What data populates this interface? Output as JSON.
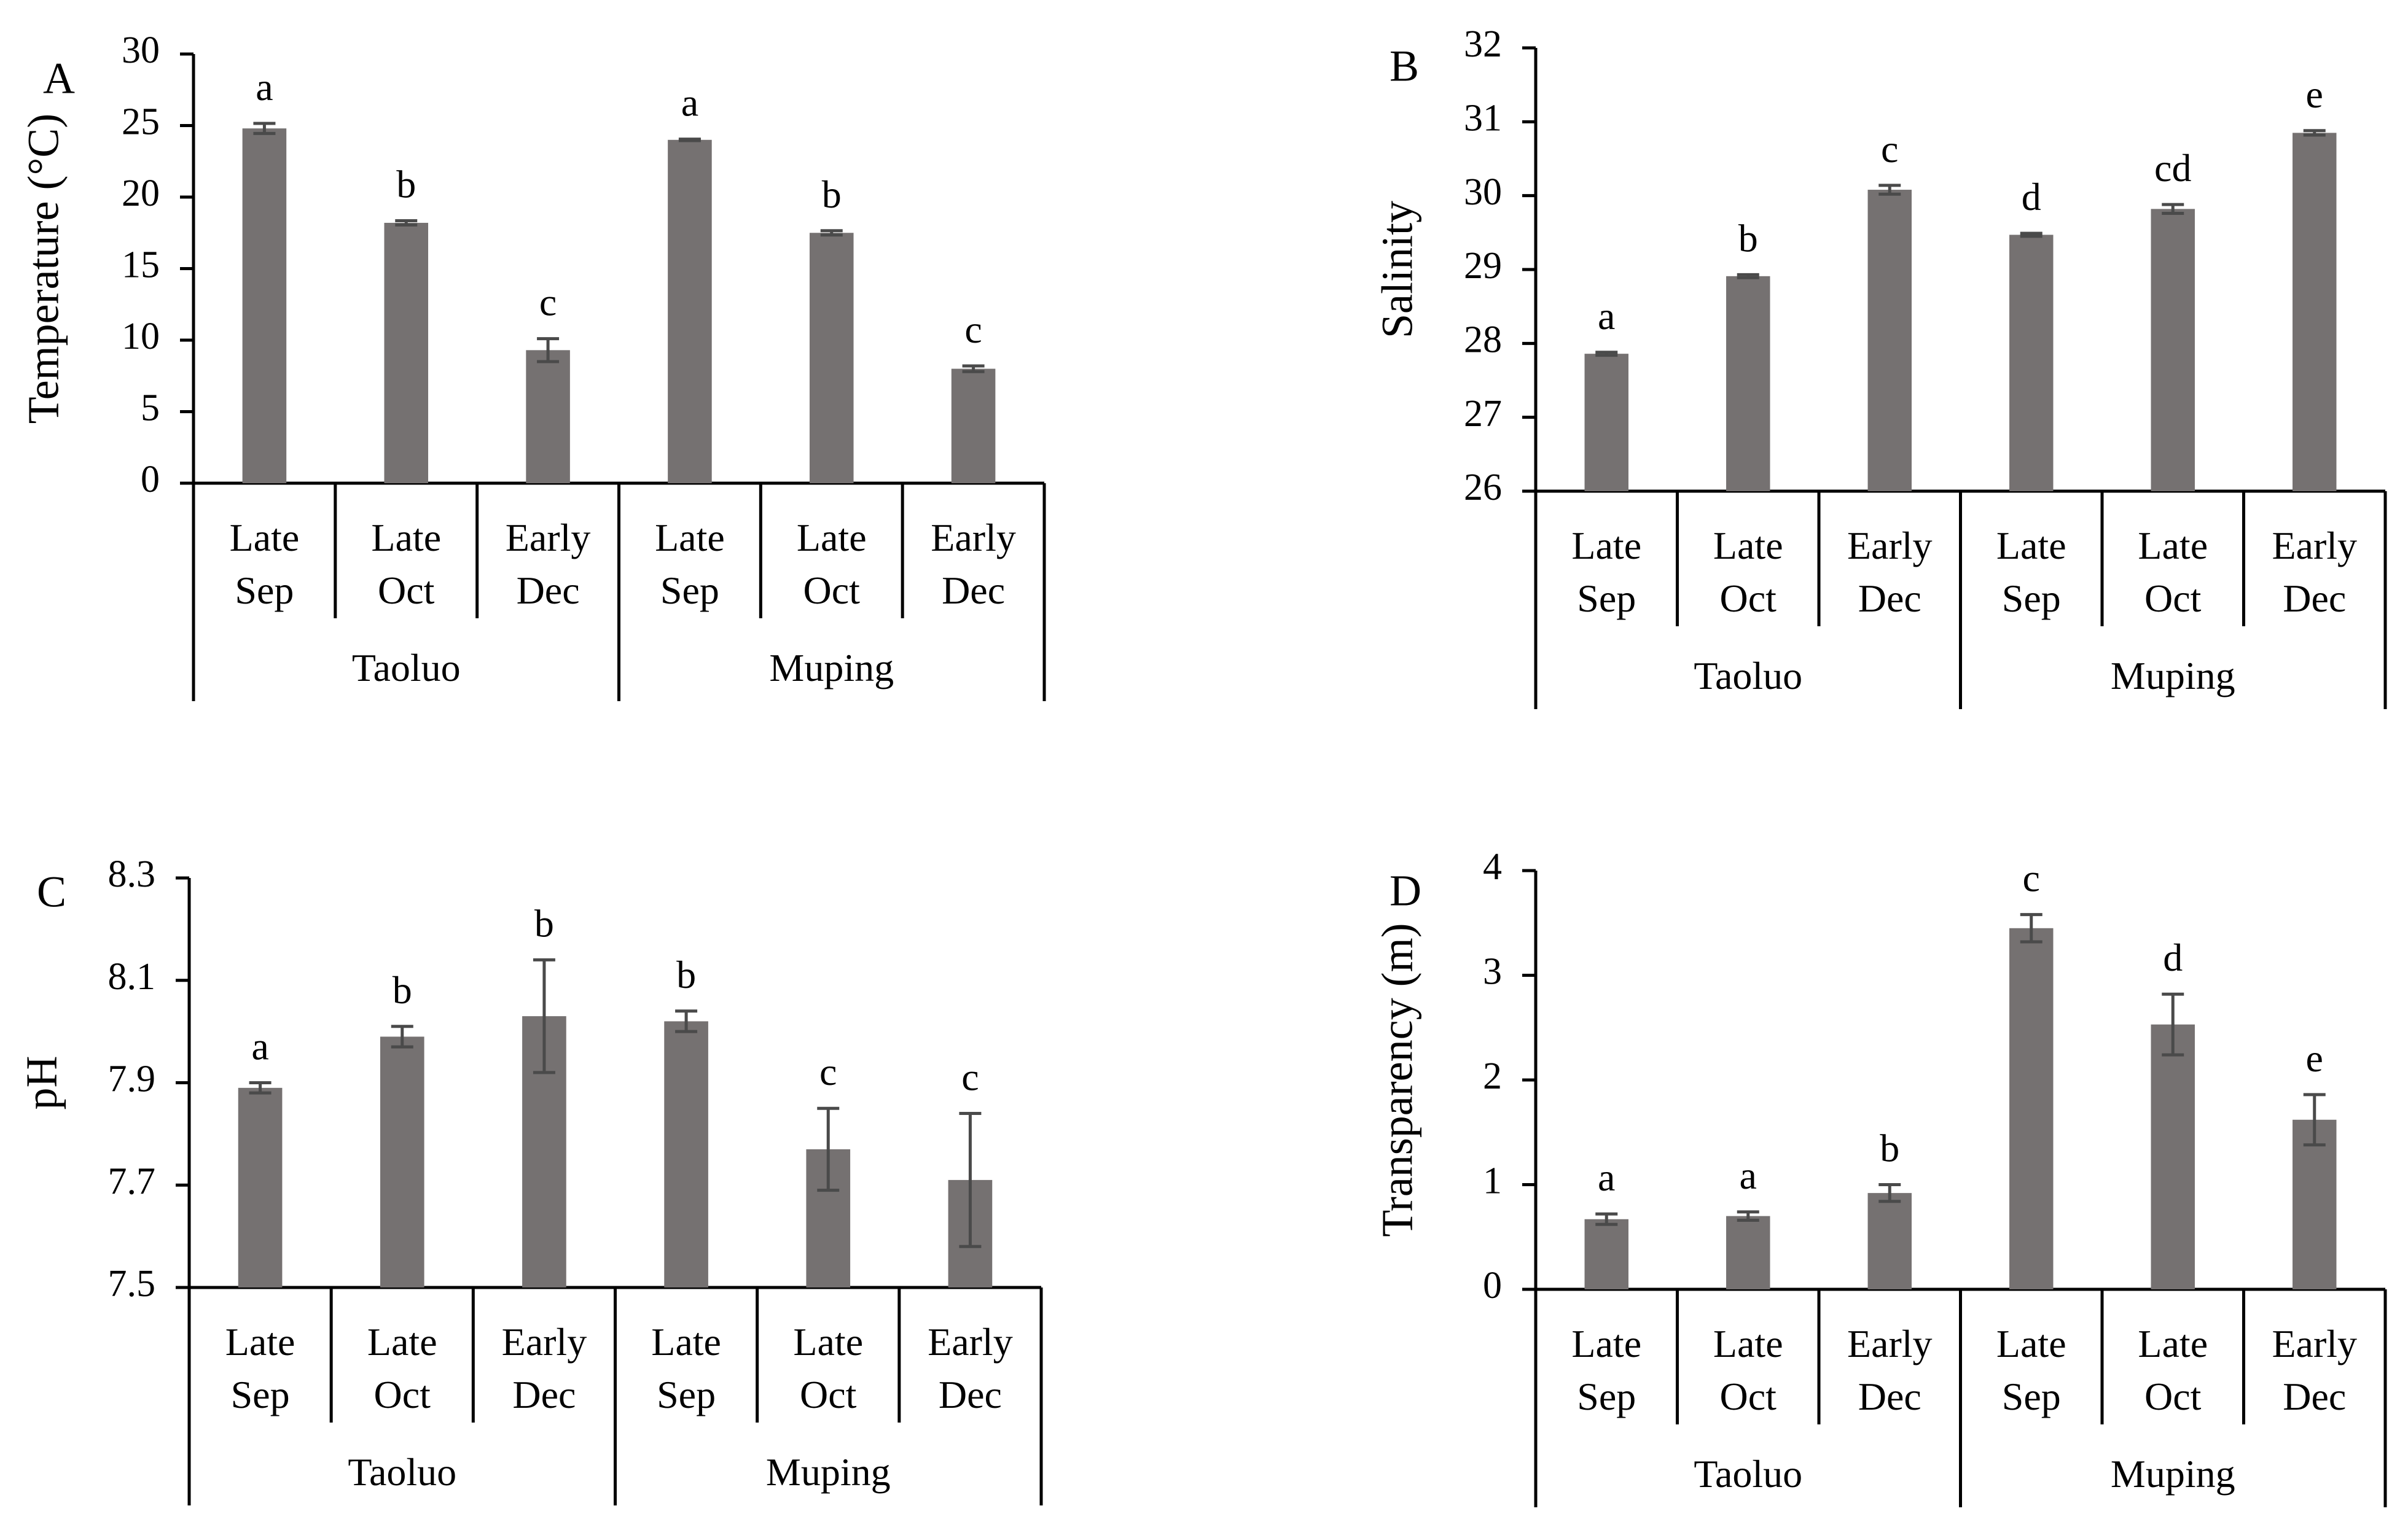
{
  "colors": {
    "bar": "#757171",
    "error_bar": "#4a4a4a",
    "axis": "#000000",
    "background": "#ffffff"
  },
  "chart_data": [
    {
      "type": "bar",
      "panel": "A",
      "ylabel": "Temperature (°C)",
      "ylim": [
        0,
        30
      ],
      "yticks": [
        0,
        5,
        10,
        15,
        20,
        25,
        30
      ],
      "ytick_labels": [
        "0",
        "5",
        "10",
        "15",
        "20",
        "25",
        "30"
      ],
      "categories": [
        [
          "Late",
          "Sep"
        ],
        [
          "Late",
          "Oct"
        ],
        [
          "Early",
          "Dec"
        ],
        [
          "Late",
          "Sep"
        ],
        [
          "Late",
          "Oct"
        ],
        [
          "Early",
          "Dec"
        ]
      ],
      "groups": [
        {
          "name": "Taoluo",
          "span": [
            0,
            3
          ]
        },
        {
          "name": "Muping",
          "span": [
            3,
            6
          ]
        }
      ],
      "values": [
        24.8,
        18.2,
        9.3,
        24.0,
        17.5,
        8.0
      ],
      "errors": [
        0.35,
        0.15,
        0.8,
        0.05,
        0.15,
        0.2
      ],
      "significance": [
        "a",
        "b",
        "c",
        "a",
        "b",
        "c"
      ],
      "grid": false,
      "legend": "none"
    },
    {
      "type": "bar",
      "panel": "B",
      "ylabel": "Salinity",
      "ylim": [
        26,
        32
      ],
      "yticks": [
        26,
        27,
        28,
        29,
        30,
        31,
        32
      ],
      "ytick_labels": [
        "26",
        "27",
        "28",
        "29",
        "30",
        "31",
        "32"
      ],
      "categories": [
        [
          "Late",
          "Sep"
        ],
        [
          "Late",
          "Oct"
        ],
        [
          "Early",
          "Dec"
        ],
        [
          "Late",
          "Sep"
        ],
        [
          "Late",
          "Oct"
        ],
        [
          "Early",
          "Dec"
        ]
      ],
      "groups": [
        {
          "name": "Taoluo",
          "span": [
            0,
            3
          ]
        },
        {
          "name": "Muping",
          "span": [
            3,
            6
          ]
        }
      ],
      "values": [
        27.86,
        28.91,
        30.08,
        29.47,
        29.82,
        30.85
      ],
      "errors": [
        0.02,
        0.02,
        0.06,
        0.02,
        0.06,
        0.03
      ],
      "significance": [
        "a",
        "b",
        "c",
        "d",
        "cd",
        "e"
      ],
      "grid": false,
      "legend": "none"
    },
    {
      "type": "bar",
      "panel": "C",
      "ylabel": "pH",
      "ylim": [
        7.5,
        8.3
      ],
      "yticks": [
        7.5,
        7.7,
        7.9,
        8.1,
        8.3
      ],
      "ytick_labels": [
        "7.5",
        "7.7",
        "7.9",
        "8.1",
        "8.3"
      ],
      "categories": [
        [
          "Late",
          "Sep"
        ],
        [
          "Late",
          "Oct"
        ],
        [
          "Early",
          "Dec"
        ],
        [
          "Late",
          "Sep"
        ],
        [
          "Late",
          "Oct"
        ],
        [
          "Early",
          "Dec"
        ]
      ],
      "groups": [
        {
          "name": "Taoluo",
          "span": [
            0,
            3
          ]
        },
        {
          "name": "Muping",
          "span": [
            3,
            6
          ]
        }
      ],
      "values": [
        7.89,
        7.99,
        8.03,
        8.02,
        7.77,
        7.71
      ],
      "errors": [
        0.01,
        0.02,
        0.11,
        0.02,
        0.08,
        0.13
      ],
      "significance": [
        "a",
        "b",
        "b",
        "b",
        "c",
        "c"
      ],
      "grid": false,
      "legend": "none"
    },
    {
      "type": "bar",
      "panel": "D",
      "ylabel": "Transparency (m)",
      "ylim": [
        0,
        4
      ],
      "yticks": [
        0,
        1,
        2,
        3,
        4
      ],
      "ytick_labels": [
        "0",
        "1",
        "2",
        "3",
        "4"
      ],
      "categories": [
        [
          "Late",
          "Sep"
        ],
        [
          "Late",
          "Oct"
        ],
        [
          "Early",
          "Dec"
        ],
        [
          "Late",
          "Sep"
        ],
        [
          "Late",
          "Oct"
        ],
        [
          "Early",
          "Dec"
        ]
      ],
      "groups": [
        {
          "name": "Taoluo",
          "span": [
            0,
            3
          ]
        },
        {
          "name": "Muping",
          "span": [
            3,
            6
          ]
        }
      ],
      "values": [
        0.67,
        0.7,
        0.92,
        3.45,
        2.53,
        1.62
      ],
      "errors": [
        0.05,
        0.04,
        0.08,
        0.13,
        0.29,
        0.24
      ],
      "significance": [
        "a",
        "a",
        "b",
        "c",
        "d",
        "e"
      ],
      "grid": false,
      "legend": "none"
    }
  ]
}
